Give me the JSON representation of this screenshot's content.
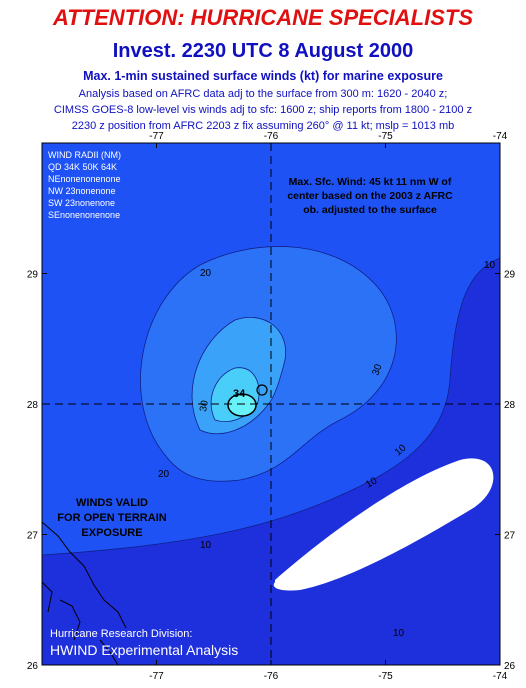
{
  "header": {
    "title": "ATTENTION: HURRICANE SPECIALISTS",
    "subtitle": "Invest.  2230 UTC 8 August 2000",
    "product": "Max. 1-min sustained surface winds (kt) for marine exposure",
    "notes": [
      "Analysis based on AFRC data adj to the surface from 300 m: 1620 - 2040 z;",
      "CIMSS GOES-8 low-level vis winds adj to sfc: 1600 z; ship reports from 1800 - 2100 z",
      "2230 z position from AFRC 2203 z  fix assuming 260° @ 11 kt; mslp = 1013 mb"
    ]
  },
  "map": {
    "xlim": [
      -78,
      -74
    ],
    "ylim": [
      26,
      30
    ],
    "xticks": [
      -77,
      -76,
      -75,
      -74
    ],
    "yticks": [
      26,
      27,
      28,
      29
    ],
    "wind_radii": [
      "WIND RADII (NM)",
      "QD 34K 50K 64K",
      "NEnonenonenone",
      "NW 23nonenone",
      "SW 23nonenone",
      "SEnonenonenone"
    ],
    "max_wind_note": [
      "Max. Sfc. Wind: 45 kt 11 nm W of",
      "center based on the 2003 z AFRC",
      "ob. adjusted to the surface"
    ],
    "exposure_note": [
      "WINDS VALID",
      "FOR OPEN TERRAIN",
      "EXPOSURE"
    ],
    "credit": [
      "Hurricane Research Division:",
      "HWIND Experimental Analysis"
    ],
    "contour_labels": [
      "20",
      "30",
      "10",
      "10",
      "10",
      "10",
      "10",
      "20",
      "30",
      "34"
    ]
  }
}
